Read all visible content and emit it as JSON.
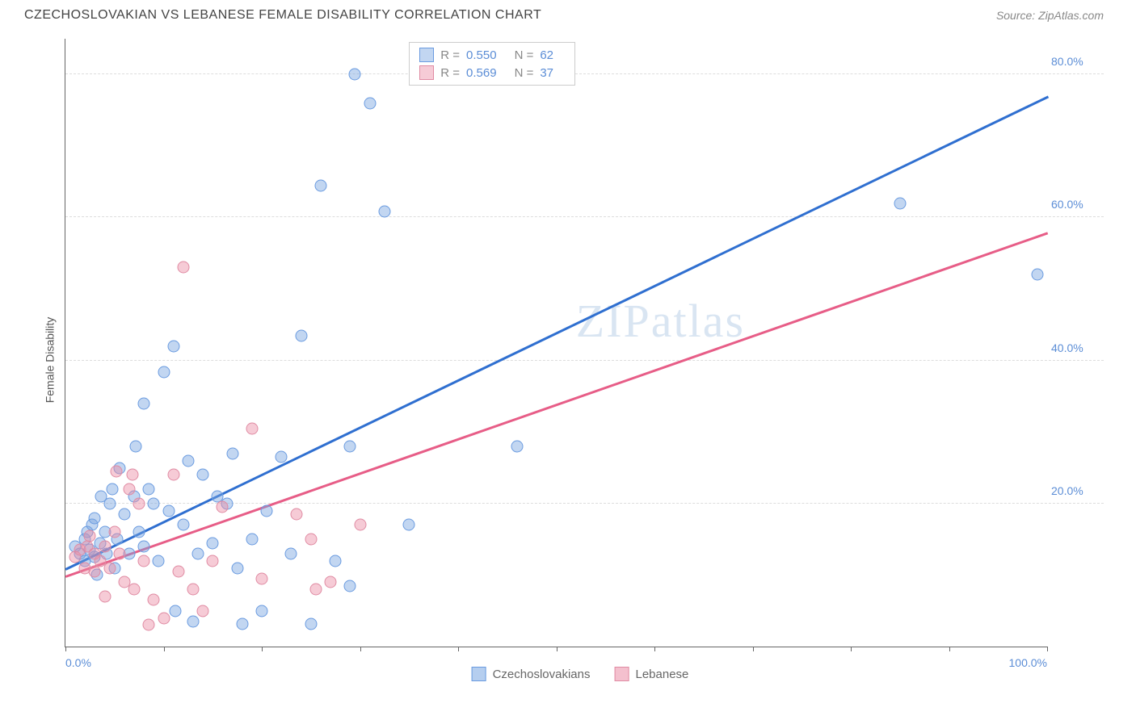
{
  "header": {
    "title": "CZECHOSLOVAKIAN VS LEBANESE FEMALE DISABILITY CORRELATION CHART",
    "source_prefix": "Source: ",
    "source_name": "ZipAtlas.com"
  },
  "chart": {
    "type": "scatter",
    "y_axis_label": "Female Disability",
    "watermark": "ZIPatlas",
    "background_color": "#ffffff",
    "grid_color": "#dddddd",
    "axis_color": "#666666",
    "tick_label_color": "#5b8dd6",
    "tick_fontsize": 14,
    "label_fontsize": 14,
    "xlim": [
      0,
      100
    ],
    "ylim": [
      0,
      85
    ],
    "x_ticks": [
      0,
      10,
      20,
      30,
      40,
      50,
      60,
      70,
      80,
      90,
      100
    ],
    "x_tick_labels": {
      "0": "0.0%",
      "100": "100.0%"
    },
    "y_ticks": [
      20,
      40,
      60,
      80
    ],
    "y_tick_labels": {
      "20": "20.0%",
      "40": "40.0%",
      "60": "60.0%",
      "80": "80.0%"
    },
    "marker_radius": 7.5,
    "marker_opacity": 0.55,
    "line_width": 2.5,
    "series": [
      {
        "name": "Czechoslovakians",
        "color_fill": "rgba(120,165,225,0.45)",
        "color_stroke": "#6a9be0",
        "line_color": "#2f6fd0",
        "R": "0.550",
        "N": "62",
        "trend": {
          "x1": 0,
          "y1": 11,
          "x2": 100,
          "y2": 77
        },
        "points": [
          [
            1,
            14
          ],
          [
            1.5,
            13
          ],
          [
            2,
            12
          ],
          [
            2,
            15
          ],
          [
            2.2,
            16
          ],
          [
            2.5,
            13.5
          ],
          [
            2.7,
            17
          ],
          [
            3,
            12.5
          ],
          [
            3,
            18
          ],
          [
            3.2,
            10
          ],
          [
            3.5,
            14.5
          ],
          [
            3.6,
            21
          ],
          [
            4,
            16
          ],
          [
            4.2,
            13
          ],
          [
            4.5,
            20
          ],
          [
            4.8,
            22
          ],
          [
            5,
            11
          ],
          [
            5.3,
            15
          ],
          [
            5.5,
            25
          ],
          [
            6,
            18.5
          ],
          [
            6.5,
            13
          ],
          [
            7,
            21
          ],
          [
            7.2,
            28
          ],
          [
            7.5,
            16
          ],
          [
            8,
            14
          ],
          [
            8,
            34
          ],
          [
            8.5,
            22
          ],
          [
            9,
            20
          ],
          [
            9.5,
            12
          ],
          [
            10,
            38.4
          ],
          [
            10.5,
            19
          ],
          [
            11,
            42
          ],
          [
            11.2,
            5
          ],
          [
            12,
            17
          ],
          [
            12.5,
            26
          ],
          [
            13,
            3.5
          ],
          [
            13.5,
            13
          ],
          [
            14,
            24
          ],
          [
            15,
            14.5
          ],
          [
            15.5,
            21
          ],
          [
            16.5,
            20
          ],
          [
            17,
            27
          ],
          [
            17.5,
            11
          ],
          [
            18,
            3.2
          ],
          [
            19,
            15
          ],
          [
            20,
            5
          ],
          [
            20.5,
            19
          ],
          [
            22,
            26.5
          ],
          [
            23,
            13
          ],
          [
            24,
            43.5
          ],
          [
            25,
            3.2
          ],
          [
            26,
            64.5
          ],
          [
            27.5,
            12
          ],
          [
            29,
            8.5
          ],
          [
            29,
            28
          ],
          [
            29.5,
            80
          ],
          [
            31,
            76
          ],
          [
            32.5,
            60.8
          ],
          [
            35,
            17
          ],
          [
            46,
            28
          ],
          [
            85,
            62
          ],
          [
            99,
            52
          ]
        ]
      },
      {
        "name": "Lebanese",
        "color_fill": "rgba(235,140,165,0.45)",
        "color_stroke": "#e08ba3",
        "line_color": "#e75d87",
        "R": "0.569",
        "N": "37",
        "trend": {
          "x1": 0,
          "y1": 10,
          "x2": 100,
          "y2": 58
        },
        "points": [
          [
            1,
            12.5
          ],
          [
            1.5,
            13.5
          ],
          [
            2,
            11
          ],
          [
            2.2,
            14
          ],
          [
            2.5,
            15.5
          ],
          [
            3,
            13
          ],
          [
            3,
            10.5
          ],
          [
            3.5,
            12
          ],
          [
            4,
            14
          ],
          [
            4,
            7
          ],
          [
            4.5,
            11
          ],
          [
            5,
            16
          ],
          [
            5.2,
            24.5
          ],
          [
            5.5,
            13
          ],
          [
            6,
            9
          ],
          [
            6.5,
            22
          ],
          [
            6.8,
            24
          ],
          [
            7,
            8
          ],
          [
            7.5,
            20
          ],
          [
            8,
            12
          ],
          [
            8.5,
            3
          ],
          [
            9,
            6.5
          ],
          [
            10,
            4
          ],
          [
            11,
            24
          ],
          [
            11.5,
            10.5
          ],
          [
            12,
            53
          ],
          [
            13,
            8
          ],
          [
            14,
            5
          ],
          [
            15,
            12
          ],
          [
            16,
            19.5
          ],
          [
            19,
            30.5
          ],
          [
            20,
            9.5
          ],
          [
            23.5,
            18.5
          ],
          [
            25,
            15
          ],
          [
            25.5,
            8
          ],
          [
            27,
            9
          ],
          [
            30,
            17
          ]
        ]
      }
    ],
    "legend_bottom": [
      {
        "label": "Czechoslovakians",
        "fill": "rgba(120,165,225,0.55)",
        "stroke": "#6a9be0"
      },
      {
        "label": "Lebanese",
        "fill": "rgba(235,140,165,0.55)",
        "stroke": "#e08ba3"
      }
    ]
  }
}
